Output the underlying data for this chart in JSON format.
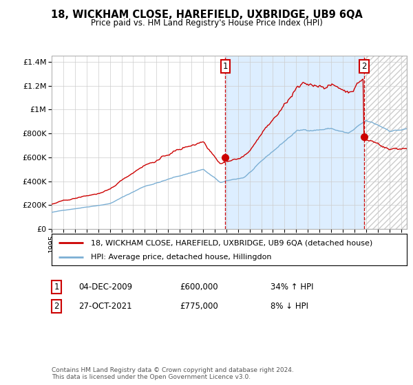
{
  "title": "18, WICKHAM CLOSE, HAREFIELD, UXBRIDGE, UB9 6QA",
  "subtitle": "Price paid vs. HM Land Registry's House Price Index (HPI)",
  "legend_label_red": "18, WICKHAM CLOSE, HAREFIELD, UXBRIDGE, UB9 6QA (detached house)",
  "legend_label_blue": "HPI: Average price, detached house, Hillingdon",
  "annotation1_date": "04-DEC-2009",
  "annotation1_price": "£600,000",
  "annotation1_hpi": "34% ↑ HPI",
  "annotation2_date": "27-OCT-2021",
  "annotation2_price": "£775,000",
  "annotation2_hpi": "8% ↓ HPI",
  "copyright": "Contains HM Land Registry data © Crown copyright and database right 2024.\nThis data is licensed under the Open Government Licence v3.0.",
  "xmin": 1995.0,
  "xmax": 2025.5,
  "ymin": 0,
  "ymax": 1450000,
  "yticks": [
    0,
    200000,
    400000,
    600000,
    800000,
    1000000,
    1200000,
    1400000
  ],
  "ytick_labels": [
    "£0",
    "£200K",
    "£400K",
    "£600K",
    "£800K",
    "£1M",
    "£1.2M",
    "£1.4M"
  ],
  "vline1_x": 2009.92,
  "vline2_x": 2021.83,
  "sale1_x": 2009.92,
  "sale1_y": 600000,
  "sale2_x": 2021.83,
  "sale2_y": 775000,
  "red_color": "#cc0000",
  "blue_color": "#7bafd4",
  "vline_color": "#cc0000",
  "shade_color": "#ddeeff",
  "background_color": "#ffffff",
  "grid_color": "#cccccc"
}
